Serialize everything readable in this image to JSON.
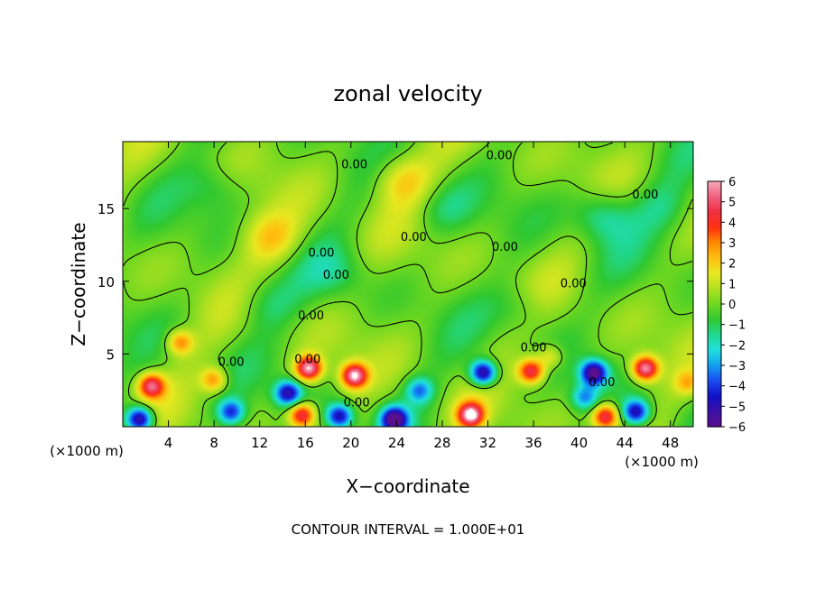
{
  "chart_data": {
    "type": "heatmap",
    "title": "zonal velocity",
    "xlabel": "X−coordinate",
    "ylabel": "Z−coordinate",
    "x_unit_left": "(×1000 m)",
    "x_unit_right": "(×1000 m)",
    "footer": "CONTOUR INTERVAL = 1.000E+01",
    "xlim": [
      0,
      50
    ],
    "ylim": [
      0,
      19.6
    ],
    "x_ticks": [
      "4",
      "8",
      "12",
      "16",
      "20",
      "24",
      "28",
      "32",
      "36",
      "40",
      "44",
      "48"
    ],
    "x_tick_values": [
      4,
      8,
      12,
      16,
      20,
      24,
      28,
      32,
      36,
      40,
      44,
      48
    ],
    "y_ticks": [
      "5",
      "10",
      "15"
    ],
    "y_tick_values": [
      5,
      10,
      15
    ],
    "colorbar": {
      "range": [
        -6,
        6
      ],
      "labels": [
        "6",
        "5",
        "4",
        "3",
        "2",
        "1",
        "0",
        "−1",
        "−2",
        "−3",
        "−4",
        "−5",
        "−6"
      ],
      "label_values": [
        6,
        5,
        4,
        3,
        2,
        1,
        0,
        -1,
        -2,
        -3,
        -4,
        -5,
        -6
      ],
      "colors": [
        "#5a0f8c",
        "#3a10a8",
        "#1010c8",
        "#1a4cf0",
        "#12a0f0",
        "#20e0e0",
        "#20d890",
        "#30c830",
        "#70d820",
        "#b0e020",
        "#e8e820",
        "#ffc010",
        "#ff8800",
        "#ff3010",
        "#f03040",
        "#f06080",
        "#f8a8b8"
      ]
    },
    "contour_labels": [
      {
        "text": "0.00",
        "x": 20.3,
        "z": 18.0
      },
      {
        "text": "0.00",
        "x": 33.0,
        "z": 18.6
      },
      {
        "text": "0.00",
        "x": 45.8,
        "z": 15.9
      },
      {
        "text": "0.00",
        "x": 25.5,
        "z": 13.0
      },
      {
        "text": "0.00",
        "x": 33.5,
        "z": 12.3
      },
      {
        "text": "0.00",
        "x": 17.4,
        "z": 11.9
      },
      {
        "text": "0.00",
        "x": 18.7,
        "z": 10.4
      },
      {
        "text": "0.00",
        "x": 39.5,
        "z": 9.8
      },
      {
        "text": "0.00",
        "x": 16.5,
        "z": 7.6
      },
      {
        "text": "0.00",
        "x": 16.2,
        "z": 4.6
      },
      {
        "text": "0.00",
        "x": 9.5,
        "z": 4.4
      },
      {
        "text": "0.00",
        "x": 36.0,
        "z": 5.4
      },
      {
        "text": "0.00",
        "x": 20.5,
        "z": 1.6
      },
      {
        "text": "0.00",
        "x": 42.0,
        "z": 3.0
      }
    ],
    "extrema": [
      {
        "x": 2.5,
        "z": 2.8,
        "value": 5
      },
      {
        "x": 1.5,
        "z": 0.5,
        "value": -6
      },
      {
        "x": 8.0,
        "z": 3.2,
        "value": 3
      },
      {
        "x": 9.5,
        "z": 1.0,
        "value": -4
      },
      {
        "x": 14.5,
        "z": 2.3,
        "value": -5
      },
      {
        "x": 16.3,
        "z": 4.0,
        "value": 6
      },
      {
        "x": 15.7,
        "z": 0.8,
        "value": 5
      },
      {
        "x": 20.3,
        "z": 3.5,
        "value": 6
      },
      {
        "x": 19.0,
        "z": 0.7,
        "value": -5
      },
      {
        "x": 23.8,
        "z": 0.5,
        "value": -6
      },
      {
        "x": 26.0,
        "z": 2.5,
        "value": -3
      },
      {
        "x": 30.5,
        "z": 0.8,
        "value": 6
      },
      {
        "x": 31.6,
        "z": 3.7,
        "value": -6
      },
      {
        "x": 35.8,
        "z": 3.8,
        "value": 5
      },
      {
        "x": 40.5,
        "z": 2.0,
        "value": -3
      },
      {
        "x": 41.3,
        "z": 3.7,
        "value": -6
      },
      {
        "x": 42.3,
        "z": 0.7,
        "value": 5
      },
      {
        "x": 45.8,
        "z": 4.0,
        "value": 6
      },
      {
        "x": 45.0,
        "z": 1.0,
        "value": -5
      },
      {
        "x": 49.5,
        "z": 3.0,
        "value": 2
      },
      {
        "x": 5.0,
        "z": 5.8,
        "value": 3
      },
      {
        "x": 37.5,
        "z": 4.8,
        "value": 2
      },
      {
        "x": 13.0,
        "z": 13.0,
        "value": 2
      },
      {
        "x": 24.5,
        "z": 17.0,
        "value": 2
      },
      {
        "x": 28.0,
        "z": 15.0,
        "value": -1
      },
      {
        "x": 42.0,
        "z": 14.5,
        "value": -2
      },
      {
        "x": 47.5,
        "z": 15.0,
        "value": -1
      },
      {
        "x": 35.0,
        "z": 8.0,
        "value": -1
      },
      {
        "x": 19.0,
        "z": 10.5,
        "value": -1
      },
      {
        "x": 8.0,
        "z": 16.5,
        "value": -1
      },
      {
        "x": 12.5,
        "z": 8.5,
        "value": -1
      }
    ]
  }
}
